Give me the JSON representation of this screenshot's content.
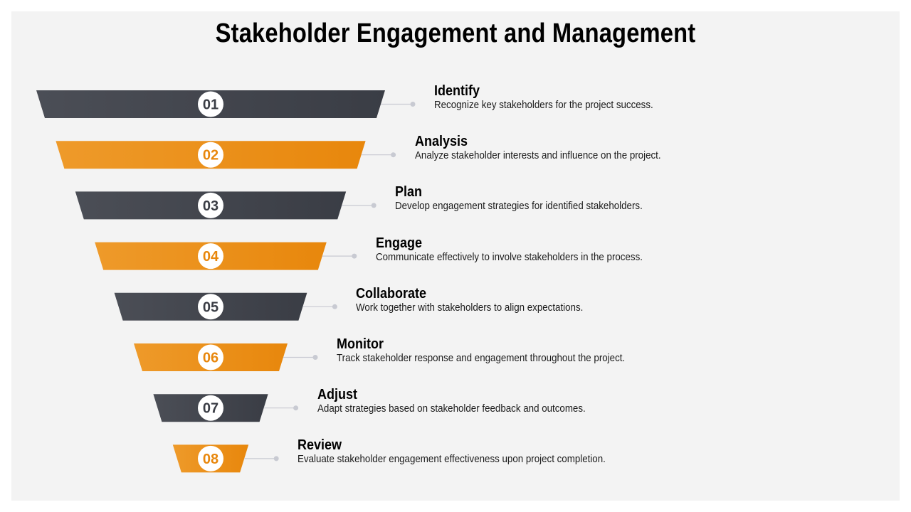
{
  "title": "Stakeholder Engagement and Management",
  "colors": {
    "dark": "#3a3d45",
    "dark_light": "#4b4e56",
    "orange": "#e8870c",
    "orange_light": "#ee9a2a",
    "connector": "#c8cad2",
    "badge_dark_text": "#3a3d45",
    "badge_orange_text": "#e8870c"
  },
  "steps": [
    {
      "number": "01",
      "title": "Identify",
      "description": "Recognize key stakeholders for the project success.",
      "color": "dark"
    },
    {
      "number": "02",
      "title": "Analysis",
      "description": "Analyze stakeholder interests and influence on the project.",
      "color": "orange"
    },
    {
      "number": "03",
      "title": "Plan",
      "description": "Develop engagement strategies for identified stakeholders.",
      "color": "dark"
    },
    {
      "number": "04",
      "title": "Engage",
      "description": "Communicate effectively to involve stakeholders in the process.",
      "color": "orange"
    },
    {
      "number": "05",
      "title": "Collaborate",
      "description": "Work together with stakeholders to align expectations.",
      "color": "dark"
    },
    {
      "number": "06",
      "title": "Monitor",
      "description": "Track stakeholder response and engagement throughout the project.",
      "color": "orange"
    },
    {
      "number": "07",
      "title": "Adjust",
      "description": "Adapt strategies based on stakeholder feedback and outcomes.",
      "color": "dark"
    },
    {
      "number": "08",
      "title": "Review",
      "description": "Evaluate stakeholder engagement effectiveness upon project completion.",
      "color": "orange"
    }
  ]
}
